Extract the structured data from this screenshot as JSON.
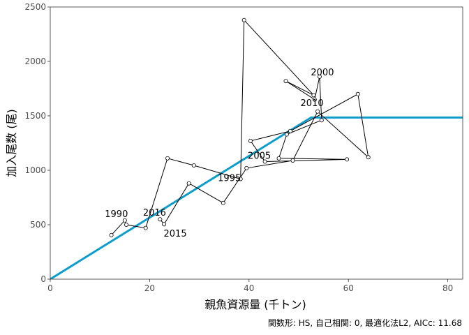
{
  "chart_data": {
    "type": "scatter",
    "xlabel": "親魚資源量 (千トン)",
    "ylabel": "加入尾数 (尾)",
    "caption": "関数形: HS, 自己相関: 0, 最適化法L2, AICc: 11.68",
    "xlim": [
      0,
      83
    ],
    "ylim": [
      0,
      2500
    ],
    "x_ticks": [
      0,
      20,
      40,
      60,
      80
    ],
    "y_ticks": [
      0,
      500,
      1000,
      1500,
      2000,
      2500
    ],
    "grid": false,
    "colors": {
      "fit_line": "#0c9dcb",
      "points_stroke": "#000000",
      "points_fill": "#ffffff",
      "path": "#000000"
    },
    "fit_line": {
      "name": "HS",
      "points": [
        [
          0,
          0
        ],
        [
          52.5,
          1485
        ],
        [
          83,
          1485
        ]
      ]
    },
    "series": [
      {
        "values": [
          {
            "year": 1989,
            "x": 12.3,
            "y": 405
          },
          {
            "year": 1990,
            "x": 15.0,
            "y": 540
          },
          {
            "year": 1991,
            "x": 15.3,
            "y": 500
          },
          {
            "year": 1992,
            "x": 19.2,
            "y": 470
          },
          {
            "year": 1993,
            "x": 23.6,
            "y": 1110
          },
          {
            "year": 1994,
            "x": 28.9,
            "y": 1045
          },
          {
            "year": 1995,
            "x": 38.3,
            "y": 920
          },
          {
            "year": 1996,
            "x": 39.0,
            "y": 2380
          },
          {
            "year": 1997,
            "x": 53.0,
            "y": 1690
          },
          {
            "year": 1998,
            "x": 47.4,
            "y": 1820
          },
          {
            "year": 1999,
            "x": 53.2,
            "y": 1650
          },
          {
            "year": 2000,
            "x": 54.2,
            "y": 1860
          },
          {
            "year": 2001,
            "x": 54.6,
            "y": 1460
          },
          {
            "year": 2002,
            "x": 47.6,
            "y": 1330
          },
          {
            "year": 2003,
            "x": 46.0,
            "y": 1110
          },
          {
            "year": 2004,
            "x": 59.7,
            "y": 1100
          },
          {
            "year": 2005,
            "x": 43.2,
            "y": 1080
          },
          {
            "year": 2006,
            "x": 40.3,
            "y": 1270
          },
          {
            "year": 2007,
            "x": 48.3,
            "y": 1360
          },
          {
            "year": 2008,
            "x": 61.9,
            "y": 1700
          },
          {
            "year": 2009,
            "x": 64.0,
            "y": 1120
          },
          {
            "year": 2010,
            "x": 53.8,
            "y": 1540
          },
          {
            "year": 2011,
            "x": 48.8,
            "y": 1090
          },
          {
            "year": 2012,
            "x": 39.5,
            "y": 1020
          },
          {
            "year": 2013,
            "x": 34.8,
            "y": 700
          },
          {
            "year": 2014,
            "x": 27.9,
            "y": 880
          },
          {
            "year": 2015,
            "x": 22.9,
            "y": 505
          },
          {
            "year": 2016,
            "x": 22.1,
            "y": 550
          }
        ]
      }
    ],
    "year_labels": [
      {
        "text": "1990",
        "year": 1990
      },
      {
        "text": "2016",
        "year": 2016
      },
      {
        "text": "2015",
        "year": 2015
      },
      {
        "text": "1995",
        "year": 1995
      },
      {
        "text": "2010",
        "year": 2010
      },
      {
        "text": "2005",
        "year": 2005
      },
      {
        "text": "2000",
        "year": 2000
      }
    ]
  }
}
